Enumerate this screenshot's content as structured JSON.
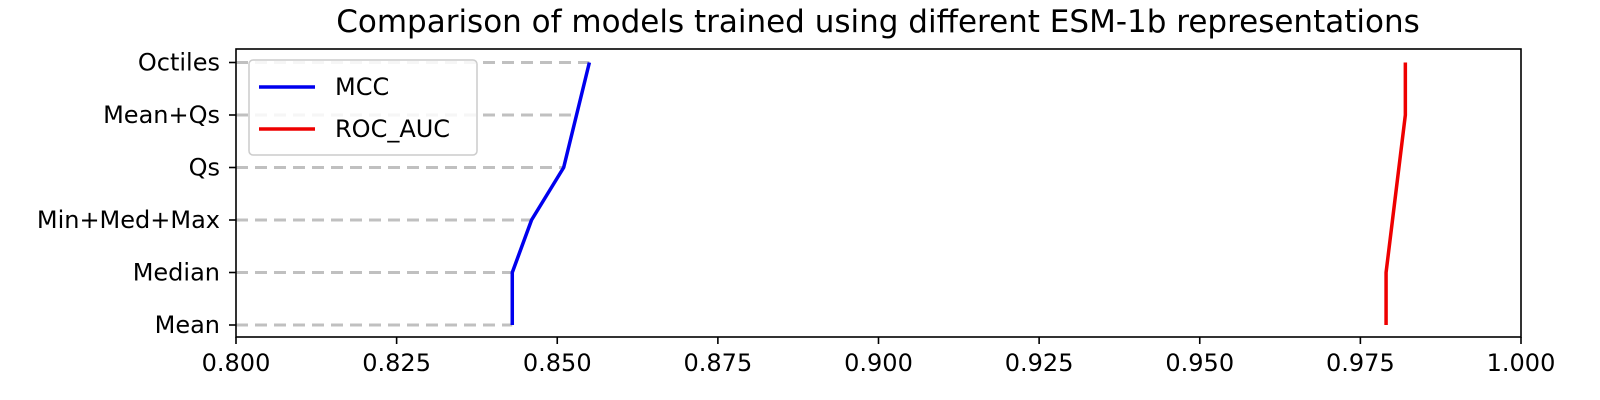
{
  "chart_data": {
    "type": "line",
    "title": "Comparison of models trained using different ESM-1b representations",
    "xlabel": "",
    "ylabel": "",
    "orientation": "horizontal",
    "categories": [
      "Mean",
      "Median",
      "Min+Med+Max",
      "Qs",
      "Mean+Qs",
      "Octiles"
    ],
    "xlim": [
      0.8,
      1.0
    ],
    "x_ticks": [
      "0.800",
      "0.825",
      "0.850",
      "0.875",
      "0.900",
      "0.925",
      "0.950",
      "0.975",
      "1.000"
    ],
    "grid": false,
    "legend_position": "top-left",
    "series": [
      {
        "name": "MCC",
        "color": "#0000ee",
        "values": [
          0.843,
          0.843,
          0.846,
          0.851,
          0.853,
          0.855
        ]
      },
      {
        "name": "ROC_AUC",
        "color": "#ee0000",
        "values": [
          0.979,
          0.979,
          0.98,
          0.981,
          0.982,
          0.982
        ]
      }
    ],
    "guide_lines": {
      "style": "dashed",
      "color": "#c0c0c0",
      "from_series": "MCC"
    }
  }
}
